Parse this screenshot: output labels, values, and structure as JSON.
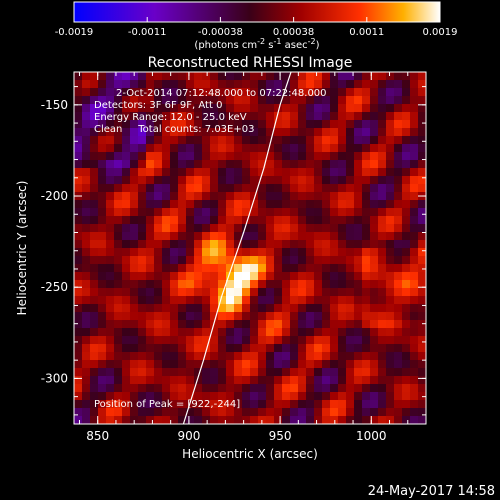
{
  "chart_data": {
    "type": "heatmap",
    "title": "Reconstructed RHESSI Image",
    "xlabel": "Heliocentric X (arcsec)",
    "ylabel": "Heliocentric Y (arcsec)",
    "xlim": [
      837,
      1030
    ],
    "ylim": [
      -325,
      -132
    ],
    "x_ticks": [
      850,
      900,
      950,
      1000
    ],
    "y_ticks": [
      -150,
      -200,
      -250,
      -300
    ],
    "colorbar": {
      "ticks": [
        "-0.0019",
        "-0.0011",
        "-0.00038",
        "0.00038",
        "0.0011",
        "0.0019"
      ],
      "units_line": "(photons cm",
      "units_exp1": "-2",
      "units_mid": " s",
      "units_exp2": "-1",
      "units_mid2": " asec",
      "units_exp3": "-2",
      "units_end": ")",
      "range": [
        -0.0019,
        0.0019
      ],
      "colormap": [
        "#0000ff",
        "#6a00c8",
        "#3a0018",
        "#a00000",
        "#ff3000",
        "#ffb000",
        "#ffffff"
      ]
    },
    "info_lines": [
      "2-Oct-2014 07:12:48.000 to 07:22:48.000",
      "Detectors: 3F 6F 9F, Att 0",
      "Energy Range: 12.0 - 25.0 keV",
      "Clean     Total counts: 7.03E+03"
    ],
    "peak_label": "Position of Peak = [922,-244]",
    "peak": [
      922,
      -244
    ],
    "peak_value": 0.0019,
    "limb_curve": [
      [
        897,
        -325
      ],
      [
        908,
        -290
      ],
      [
        918,
        -255
      ],
      [
        930,
        -220
      ],
      [
        941,
        -185
      ],
      [
        950,
        -150
      ],
      [
        956,
        -132
      ]
    ]
  },
  "footer": {
    "timestamp": "24-May-2017 14:58"
  }
}
